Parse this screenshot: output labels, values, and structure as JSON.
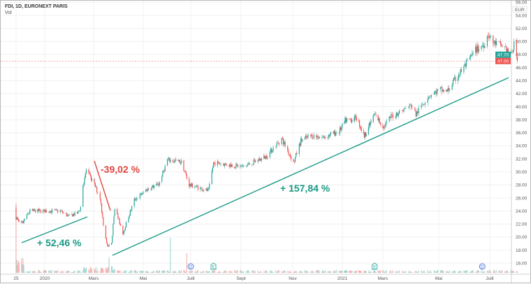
{
  "header": {
    "title": "FDI, 1D, EURONEXT PARIS",
    "volume_label": "Vol"
  },
  "colors": {
    "up": "#26a69a",
    "down": "#ef5350",
    "grid": "#f0f0f0",
    "annotation_up": "#1a9a85",
    "annotation_down": "#e0463f",
    "event_dividend": "#3d6fd8",
    "event_earnings": "#26a69a"
  },
  "chart_data": {
    "type": "candlestick",
    "title": "FDI, 1D, EURONEXT PARIS",
    "currency": "EUR",
    "ylim": [
      15,
      56
    ],
    "grid": true,
    "y_ticks": [
      "56.00",
      "54.00",
      "52.00",
      "50.00",
      "48.00",
      "46.00",
      "44.00",
      "42.00",
      "40.00",
      "38.00",
      "36.00",
      "34.00",
      "32.00",
      "30.00",
      "28.00",
      "26.00",
      "24.00",
      "22.00",
      "20.00",
      "18.00",
      "16.00"
    ],
    "x_ticks": [
      {
        "label": "25",
        "date": "2019-11-25"
      },
      {
        "label": "2020",
        "date": "2020-01-01"
      },
      {
        "label": "Mars",
        "date": "2020-03-01"
      },
      {
        "label": "Mai",
        "date": "2020-05-01"
      },
      {
        "label": "Juill",
        "date": "2020-07-01"
      },
      {
        "label": "Sept",
        "date": "2020-09-01"
      },
      {
        "label": "Nov",
        "date": "2020-11-01"
      },
      {
        "label": "2021",
        "date": "2021-01-01"
      },
      {
        "label": "Mars",
        "date": "2021-03-01"
      },
      {
        "label": "Mai",
        "date": "2021-05-01"
      },
      {
        "label": "Juill",
        "date": "2021-07-01"
      }
    ],
    "close_keypoints": [
      [
        "2019-11-25",
        23.0
      ],
      [
        "2019-12-02",
        22.0
      ],
      [
        "2019-12-13",
        24.0
      ],
      [
        "2020-01-20",
        24.0
      ],
      [
        "2020-01-30",
        23.2
      ],
      [
        "2020-02-11",
        23.7
      ],
      [
        "2020-02-14",
        24.6
      ],
      [
        "2020-02-17",
        28.0
      ],
      [
        "2020-02-21",
        30.3
      ],
      [
        "2020-03-02",
        28.0
      ],
      [
        "2020-03-09",
        26.0
      ],
      [
        "2020-03-13",
        22.0
      ],
      [
        "2020-03-18",
        18.5
      ],
      [
        "2020-03-23",
        19.0
      ],
      [
        "2020-03-27",
        24.6
      ],
      [
        "2020-04-06",
        20.6
      ],
      [
        "2020-04-20",
        25.7
      ],
      [
        "2020-05-06",
        27.3
      ],
      [
        "2020-05-21",
        28.1
      ],
      [
        "2020-06-01",
        31.8
      ],
      [
        "2020-06-19",
        31.5
      ],
      [
        "2020-06-29",
        28.0
      ],
      [
        "2020-07-23",
        27.1
      ],
      [
        "2020-07-29",
        31.4
      ],
      [
        "2020-09-04",
        30.8
      ],
      [
        "2020-09-30",
        32.3
      ],
      [
        "2020-10-19",
        35.1
      ],
      [
        "2020-11-02",
        31.4
      ],
      [
        "2020-11-11",
        34.8
      ],
      [
        "2020-11-23",
        35.5
      ],
      [
        "2020-12-09",
        35.3
      ],
      [
        "2020-12-28",
        36.2
      ],
      [
        "2021-01-05",
        37.8
      ],
      [
        "2021-01-22",
        38.3
      ],
      [
        "2021-02-02",
        35.5
      ],
      [
        "2021-02-17",
        38.8
      ],
      [
        "2021-03-02",
        36.9
      ],
      [
        "2021-03-10",
        38.5
      ],
      [
        "2021-04-01",
        40.2
      ],
      [
        "2021-04-06",
        38.8
      ],
      [
        "2021-04-19",
        41.6
      ],
      [
        "2021-05-03",
        42.6
      ],
      [
        "2021-05-11",
        42.3
      ],
      [
        "2021-05-24",
        44.8
      ],
      [
        "2021-06-02",
        46.4
      ],
      [
        "2021-06-14",
        48.7
      ],
      [
        "2021-06-24",
        49.5
      ],
      [
        "2021-06-29",
        51.2
      ],
      [
        "2021-07-05",
        49.8
      ],
      [
        "2021-07-12",
        49.6
      ],
      [
        "2021-07-20",
        49.0
      ],
      [
        "2021-07-26",
        47.7
      ],
      [
        "2021-07-30",
        49.5
      ],
      [
        "2021-08-03",
        47.0
      ]
    ],
    "price_tags": [
      {
        "value": "47.70",
        "color": "#26a69a"
      },
      {
        "value": "47.00",
        "color": "#ef5350"
      }
    ],
    "annotations": [
      {
        "text": "+ 52,46 %",
        "color": "#1a9a85"
      },
      {
        "text": "-39,02 %",
        "color": "#e0463f"
      },
      {
        "text": "+ 157,84 %",
        "color": "#1a9a85"
      }
    ],
    "events": [
      {
        "type": "dividend",
        "glyph": "D",
        "date": "2020-07-01"
      },
      {
        "type": "earnings",
        "glyph": "E",
        "date": "2020-07-29"
      },
      {
        "type": "earnings",
        "glyph": "E",
        "date": "2021-02-17"
      },
      {
        "type": "dividend",
        "glyph": "D",
        "date": "2021-06-22"
      }
    ]
  }
}
